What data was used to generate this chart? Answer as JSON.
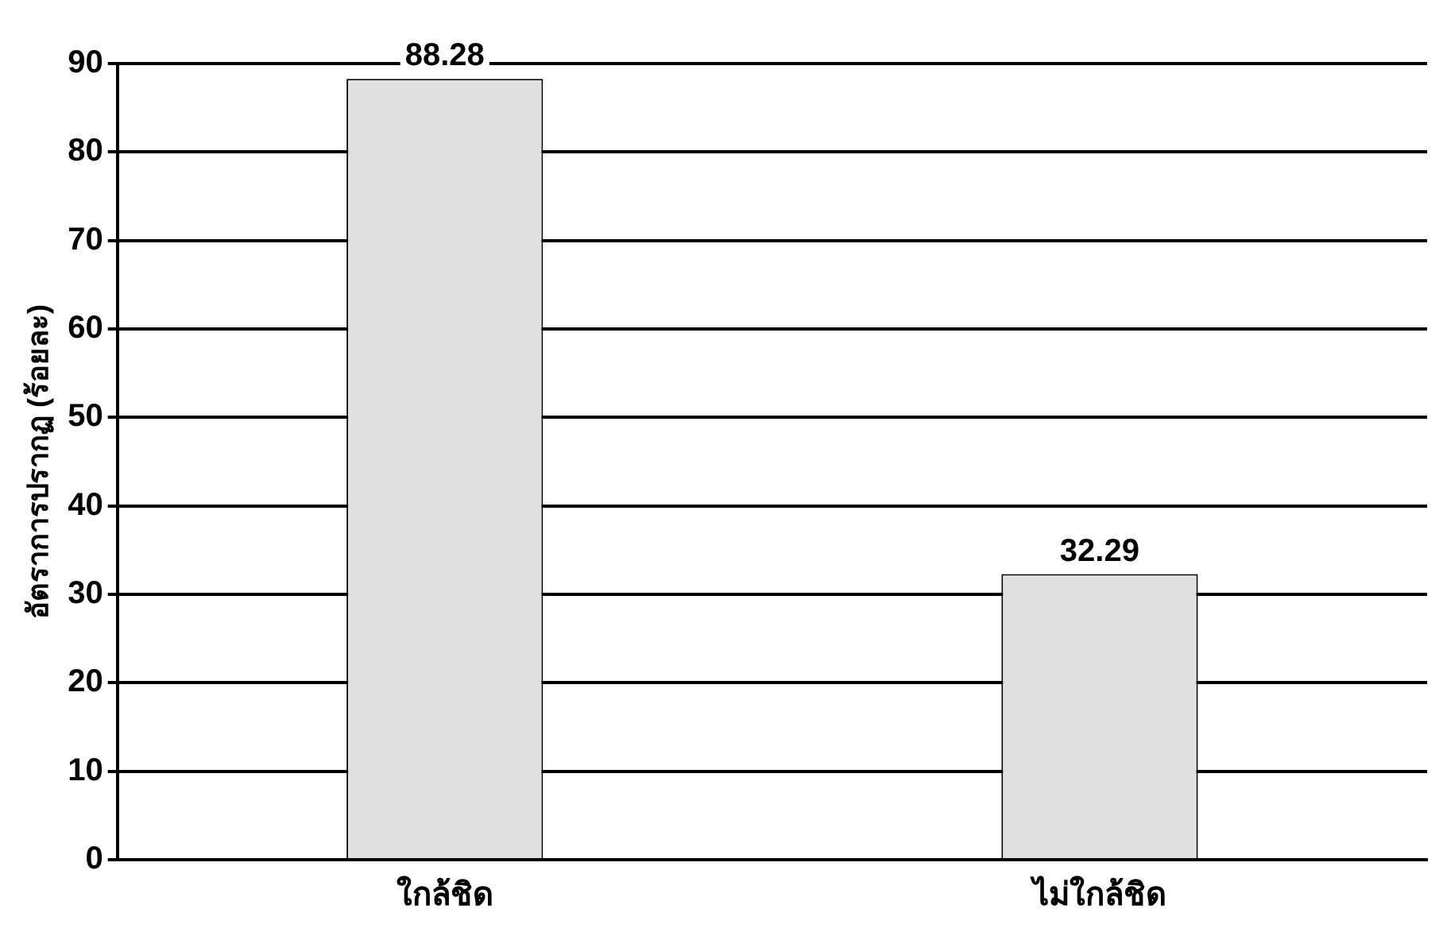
{
  "chart_data": {
    "type": "bar",
    "ylabel": "อัตราการปรากฏ (ร้อยละ)",
    "categories": [
      "ใกล้ชิด",
      "ไม่ใกล้ชิด"
    ],
    "values": [
      88.28,
      32.29
    ],
    "color": "#e0e0e0",
    "ylim": [
      0,
      90
    ],
    "yticks": [
      0,
      10,
      20,
      30,
      40,
      50,
      60,
      70,
      80,
      90
    ],
    "grid": "y",
    "data_labels": true
  }
}
